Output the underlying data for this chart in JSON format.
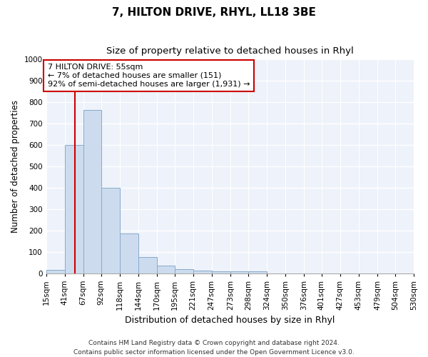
{
  "title": "7, HILTON DRIVE, RHYL, LL18 3BE",
  "subtitle": "Size of property relative to detached houses in Rhyl",
  "xlabel": "Distribution of detached houses by size in Rhyl",
  "ylabel": "Number of detached properties",
  "bar_color": "#ccdcee",
  "bar_edge_color": "#88aacc",
  "background_color": "#eef2fa",
  "grid_color": "#ffffff",
  "red_line_x": 55,
  "annotation_text": "7 HILTON DRIVE: 55sqm\n← 7% of detached houses are smaller (151)\n92% of semi-detached houses are larger (1,931) →",
  "annotation_box_color": "#ffffff",
  "annotation_box_edge": "#cc0000",
  "bin_edges": [
    15,
    41,
    67,
    92,
    118,
    144,
    170,
    195,
    221,
    247,
    273,
    298,
    324,
    350,
    376,
    401,
    427,
    453,
    479,
    504,
    530
  ],
  "bar_heights": [
    15,
    600,
    765,
    400,
    185,
    75,
    35,
    18,
    12,
    8,
    9,
    8,
    0,
    0,
    0,
    0,
    0,
    0,
    0,
    0
  ],
  "ylim": [
    0,
    1000
  ],
  "yticks": [
    0,
    100,
    200,
    300,
    400,
    500,
    600,
    700,
    800,
    900,
    1000
  ],
  "footer_text": "Contains HM Land Registry data © Crown copyright and database right 2024.\nContains public sector information licensed under the Open Government Licence v3.0.",
  "title_fontsize": 11,
  "subtitle_fontsize": 9.5,
  "xlabel_fontsize": 9,
  "ylabel_fontsize": 8.5,
  "tick_fontsize": 7.5,
  "annotation_fontsize": 8,
  "footer_fontsize": 6.5
}
